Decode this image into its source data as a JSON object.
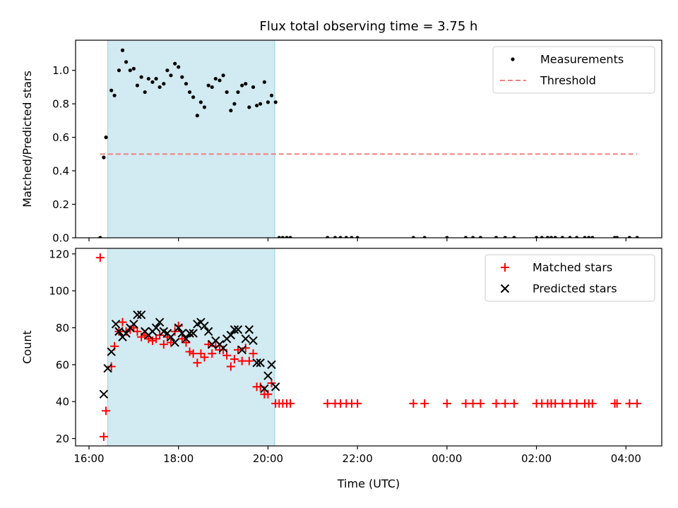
{
  "title": "Flux total observing time = 3.75 h",
  "chart_data": [
    {
      "type": "scatter",
      "ylabel": "Matched/Predicted stars",
      "ylim": [
        0,
        1.18
      ],
      "yticks": [
        "0.0",
        "0.2",
        "0.4",
        "0.6",
        "0.8",
        "1.0"
      ],
      "xlim": [
        15.7,
        28.8
      ],
      "legend_position": "top-right",
      "shaded_interval": {
        "from": 16.42,
        "to": 20.15,
        "color": "#add8e6"
      },
      "series": [
        {
          "name": "Measurements",
          "color": "#000000",
          "points": [
            [
              16.25,
              0.0
            ],
            [
              16.33,
              0.48
            ],
            [
              16.38,
              0.6
            ],
            [
              16.5,
              0.88
            ],
            [
              16.57,
              0.85
            ],
            [
              16.67,
              1.0
            ],
            [
              16.75,
              1.12
            ],
            [
              16.83,
              1.05
            ],
            [
              16.92,
              1.0
            ],
            [
              17.0,
              1.01
            ],
            [
              17.08,
              0.91
            ],
            [
              17.17,
              0.96
            ],
            [
              17.25,
              0.87
            ],
            [
              17.33,
              0.95
            ],
            [
              17.42,
              0.93
            ],
            [
              17.5,
              0.95
            ],
            [
              17.58,
              0.9
            ],
            [
              17.67,
              0.92
            ],
            [
              17.75,
              1.0
            ],
            [
              17.83,
              0.97
            ],
            [
              17.92,
              1.04
            ],
            [
              18.0,
              1.02
            ],
            [
              18.08,
              0.96
            ],
            [
              18.17,
              0.92
            ],
            [
              18.25,
              0.87
            ],
            [
              18.33,
              0.84
            ],
            [
              18.42,
              0.73
            ],
            [
              18.5,
              0.81
            ],
            [
              18.58,
              0.78
            ],
            [
              18.67,
              0.91
            ],
            [
              18.75,
              0.9
            ],
            [
              18.83,
              0.95
            ],
            [
              18.92,
              0.94
            ],
            [
              19.0,
              0.97
            ],
            [
              19.08,
              0.87
            ],
            [
              19.17,
              0.76
            ],
            [
              19.25,
              0.8
            ],
            [
              19.33,
              0.87
            ],
            [
              19.42,
              0.91
            ],
            [
              19.5,
              0.92
            ],
            [
              19.58,
              0.78
            ],
            [
              19.67,
              0.9
            ],
            [
              19.75,
              0.79
            ],
            [
              19.83,
              0.8
            ],
            [
              19.92,
              0.93
            ],
            [
              20.0,
              0.81
            ],
            [
              20.08,
              0.85
            ],
            [
              20.17,
              0.81
            ],
            [
              20.25,
              0.0
            ],
            [
              20.33,
              0.0
            ],
            [
              20.42,
              0.0
            ],
            [
              20.5,
              0.0
            ],
            [
              21.33,
              0.0
            ],
            [
              21.5,
              0.0
            ],
            [
              21.62,
              0.0
            ],
            [
              21.75,
              0.0
            ],
            [
              21.87,
              0.0
            ],
            [
              22.0,
              0.0
            ],
            [
              23.25,
              0.0
            ],
            [
              23.5,
              0.0
            ],
            [
              24.0,
              0.0
            ],
            [
              24.42,
              0.0
            ],
            [
              24.58,
              0.0
            ],
            [
              24.75,
              0.0
            ],
            [
              25.1,
              0.0
            ],
            [
              25.3,
              0.0
            ],
            [
              25.5,
              0.0
            ],
            [
              26.0,
              0.0
            ],
            [
              26.12,
              0.0
            ],
            [
              26.25,
              0.0
            ],
            [
              26.33,
              0.0
            ],
            [
              26.42,
              0.0
            ],
            [
              26.58,
              0.0
            ],
            [
              26.75,
              0.0
            ],
            [
              26.9,
              0.0
            ],
            [
              27.08,
              0.0
            ],
            [
              27.17,
              0.0
            ],
            [
              27.25,
              0.0
            ],
            [
              27.75,
              0.0
            ],
            [
              27.8,
              0.0
            ],
            [
              28.08,
              0.0
            ],
            [
              28.25,
              0.0
            ]
          ]
        },
        {
          "name": "Threshold",
          "type": "line",
          "style": "dashed",
          "color": "#f08080",
          "points": [
            [
              16.25,
              0.5
            ],
            [
              28.25,
              0.5
            ]
          ]
        }
      ]
    },
    {
      "type": "scatter",
      "xlabel": "Time (UTC)",
      "ylabel": "Count",
      "ylim": [
        16,
        123
      ],
      "yticks": [
        "20",
        "40",
        "60",
        "80",
        "100",
        "120"
      ],
      "xlim": [
        15.7,
        28.8
      ],
      "xticks": [
        [
          16,
          "16:00"
        ],
        [
          18,
          "18:00"
        ],
        [
          20,
          "20:00"
        ],
        [
          22,
          "22:00"
        ],
        [
          24,
          "00:00"
        ],
        [
          26,
          "02:00"
        ],
        [
          28,
          "04:00"
        ]
      ],
      "legend_position": "top-right",
      "shaded_interval": {
        "from": 16.42,
        "to": 20.15,
        "color": "#add8e6"
      },
      "series": [
        {
          "name": "Matched stars",
          "marker": "plus",
          "color": "#ff0000",
          "points": [
            [
              16.25,
              118
            ],
            [
              16.33,
              21
            ],
            [
              16.38,
              35
            ],
            [
              16.5,
              59
            ],
            [
              16.57,
              70
            ],
            [
              16.67,
              78
            ],
            [
              16.75,
              83
            ],
            [
              16.83,
              78
            ],
            [
              16.92,
              79
            ],
            [
              17.0,
              80
            ],
            [
              17.08,
              78
            ],
            [
              17.17,
              75
            ],
            [
              17.25,
              76
            ],
            [
              17.33,
              74
            ],
            [
              17.42,
              73
            ],
            [
              17.5,
              74
            ],
            [
              17.58,
              76
            ],
            [
              17.67,
              71
            ],
            [
              17.75,
              75
            ],
            [
              17.83,
              72
            ],
            [
              17.92,
              78
            ],
            [
              18.0,
              81
            ],
            [
              18.08,
              74
            ],
            [
              18.17,
              72
            ],
            [
              18.25,
              67
            ],
            [
              18.33,
              66
            ],
            [
              18.42,
              61
            ],
            [
              18.5,
              66
            ],
            [
              18.58,
              64
            ],
            [
              18.67,
              71
            ],
            [
              18.75,
              66
            ],
            [
              18.83,
              70
            ],
            [
              18.92,
              68
            ],
            [
              19.0,
              68
            ],
            [
              19.08,
              65
            ],
            [
              19.17,
              59
            ],
            [
              19.25,
              63
            ],
            [
              19.33,
              68
            ],
            [
              19.42,
              62
            ],
            [
              19.5,
              69
            ],
            [
              19.58,
              62
            ],
            [
              19.67,
              66
            ],
            [
              19.75,
              48
            ],
            [
              19.83,
              48
            ],
            [
              19.92,
              44
            ],
            [
              20.0,
              44
            ],
            [
              20.08,
              50
            ],
            [
              20.17,
              39
            ],
            [
              20.25,
              39
            ],
            [
              20.33,
              39
            ],
            [
              20.42,
              39
            ],
            [
              20.5,
              39
            ],
            [
              21.33,
              39
            ],
            [
              21.5,
              39
            ],
            [
              21.62,
              39
            ],
            [
              21.75,
              39
            ],
            [
              21.87,
              39
            ],
            [
              22.0,
              39
            ],
            [
              23.25,
              39
            ],
            [
              23.5,
              39
            ],
            [
              24.0,
              39
            ],
            [
              24.42,
              39
            ],
            [
              24.58,
              39
            ],
            [
              24.75,
              39
            ],
            [
              25.1,
              39
            ],
            [
              25.3,
              39
            ],
            [
              25.5,
              39
            ],
            [
              26.0,
              39
            ],
            [
              26.12,
              39
            ],
            [
              26.25,
              39
            ],
            [
              26.33,
              39
            ],
            [
              26.42,
              39
            ],
            [
              26.58,
              39
            ],
            [
              26.75,
              39
            ],
            [
              26.9,
              39
            ],
            [
              27.08,
              39
            ],
            [
              27.17,
              39
            ],
            [
              27.25,
              39
            ],
            [
              27.75,
              39
            ],
            [
              27.8,
              39
            ],
            [
              28.08,
              39
            ],
            [
              28.25,
              39
            ]
          ]
        },
        {
          "name": "Predicted stars",
          "marker": "x",
          "color": "#000000",
          "points": [
            [
              16.33,
              44
            ],
            [
              16.42,
              58
            ],
            [
              16.5,
              67
            ],
            [
              16.6,
              82
            ],
            [
              16.67,
              78
            ],
            [
              16.75,
              75
            ],
            [
              16.83,
              77
            ],
            [
              16.92,
              80
            ],
            [
              17.0,
              82
            ],
            [
              17.08,
              87
            ],
            [
              17.17,
              87
            ],
            [
              17.25,
              78
            ],
            [
              17.33,
              76
            ],
            [
              17.42,
              78
            ],
            [
              17.5,
              80
            ],
            [
              17.58,
              83
            ],
            [
              17.67,
              78
            ],
            [
              17.75,
              77
            ],
            [
              17.83,
              75
            ],
            [
              17.92,
              72
            ],
            [
              18.0,
              80
            ],
            [
              18.08,
              77
            ],
            [
              18.17,
              74
            ],
            [
              18.25,
              77
            ],
            [
              18.33,
              77
            ],
            [
              18.42,
              82
            ],
            [
              18.5,
              83
            ],
            [
              18.58,
              81
            ],
            [
              18.67,
              78
            ],
            [
              18.75,
              71
            ],
            [
              18.83,
              73
            ],
            [
              18.92,
              71
            ],
            [
              19.0,
              69
            ],
            [
              19.08,
              74
            ],
            [
              19.17,
              76
            ],
            [
              19.25,
              79
            ],
            [
              19.33,
              79
            ],
            [
              19.42,
              68
            ],
            [
              19.5,
              74
            ],
            [
              19.58,
              79
            ],
            [
              19.67,
              73
            ],
            [
              19.75,
              61
            ],
            [
              19.83,
              61
            ],
            [
              19.92,
              47
            ],
            [
              20.0,
              54
            ],
            [
              20.08,
              60
            ],
            [
              20.17,
              48
            ]
          ]
        }
      ]
    }
  ]
}
